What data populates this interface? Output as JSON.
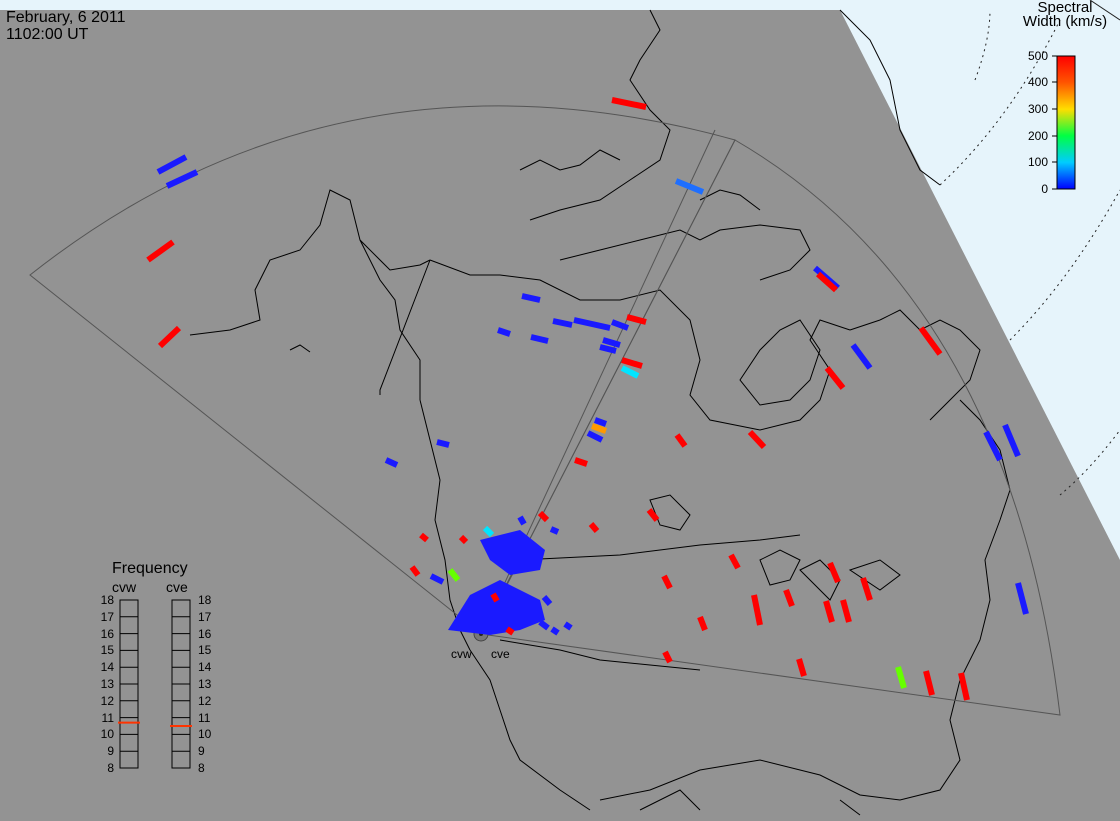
{
  "header": {
    "date": "February, 6 2011",
    "time": "1102:00 UT"
  },
  "colorbar": {
    "title_line1": "Spectral",
    "title_line2": "Width (km/s)",
    "ticks": [
      "500",
      "400",
      "300",
      "200",
      "100",
      "0"
    ]
  },
  "frequency_panel": {
    "title": "Frequency",
    "left_label": "cvw",
    "right_label": "cve",
    "ticks": [
      "18",
      "17",
      "16",
      "15",
      "14",
      "13",
      "12",
      "11",
      "10",
      "9",
      "8"
    ],
    "cvw_mhz": 10.7,
    "cve_mhz": 10.5,
    "marker_color": "#ff3300"
  },
  "radar_sites": {
    "west": "cvw",
    "east": "cve"
  },
  "colors": {
    "land": "#939393",
    "ocean_polar": "#e6f4fb",
    "outline": "#000000"
  },
  "scale": {
    "min": 0,
    "max": 500,
    "units": "km/s"
  }
}
